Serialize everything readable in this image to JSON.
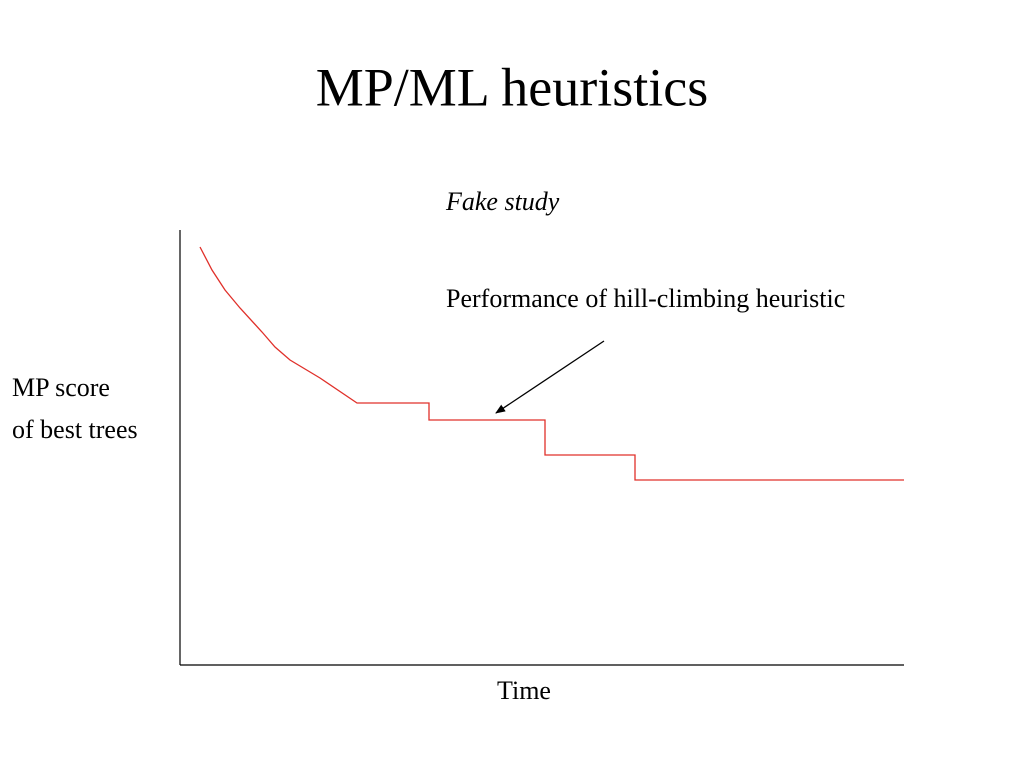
{
  "title": "MP/ML heuristics",
  "caption": "Fake study",
  "annotation": "Performance of hill-climbing heuristic",
  "y_label": [
    "MP score",
    "of best trees"
  ],
  "x_label": "Time"
}
